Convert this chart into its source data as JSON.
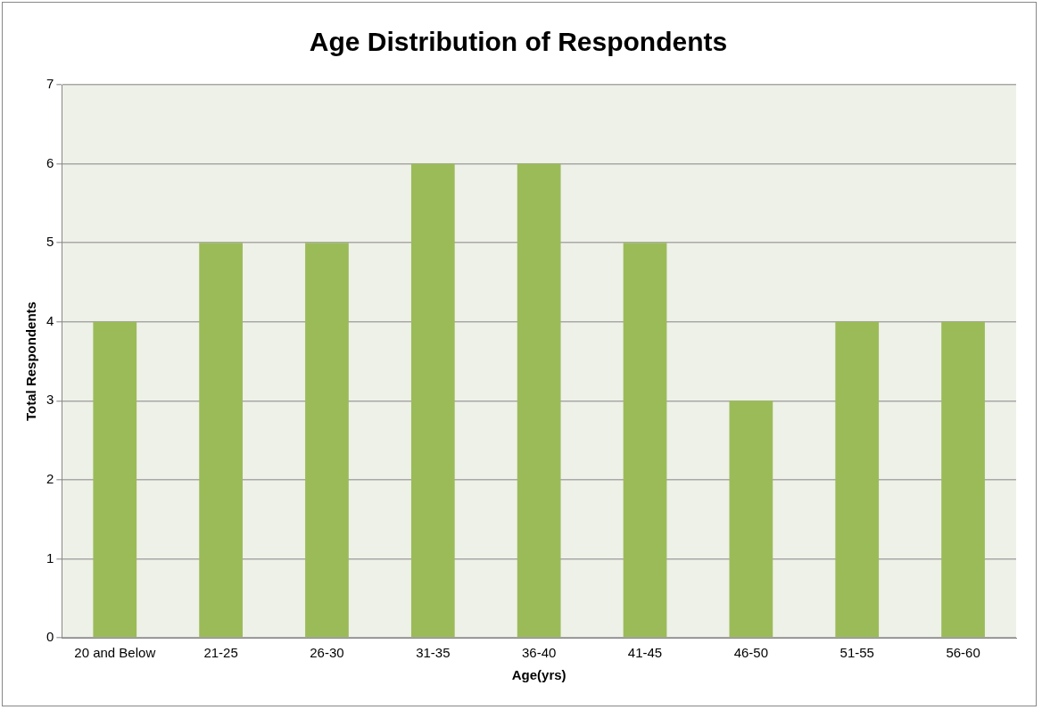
{
  "chart_data": {
    "type": "bar",
    "title": "Age Distribution of Respondents",
    "xlabel": "Age(yrs)",
    "ylabel": "Total Respondents",
    "categories": [
      "20 and Below",
      "21-25",
      "26-30",
      "31-35",
      "36-40",
      "41-45",
      "46-50",
      "51-55",
      "56-60"
    ],
    "values": [
      4,
      5,
      5,
      6,
      6,
      5,
      3,
      4,
      4
    ],
    "color": "#9bbb59",
    "ylim": [
      0,
      7
    ],
    "yticks": [
      0,
      1,
      2,
      3,
      4,
      5,
      6,
      7
    ],
    "grid": "y",
    "legend": false
  }
}
